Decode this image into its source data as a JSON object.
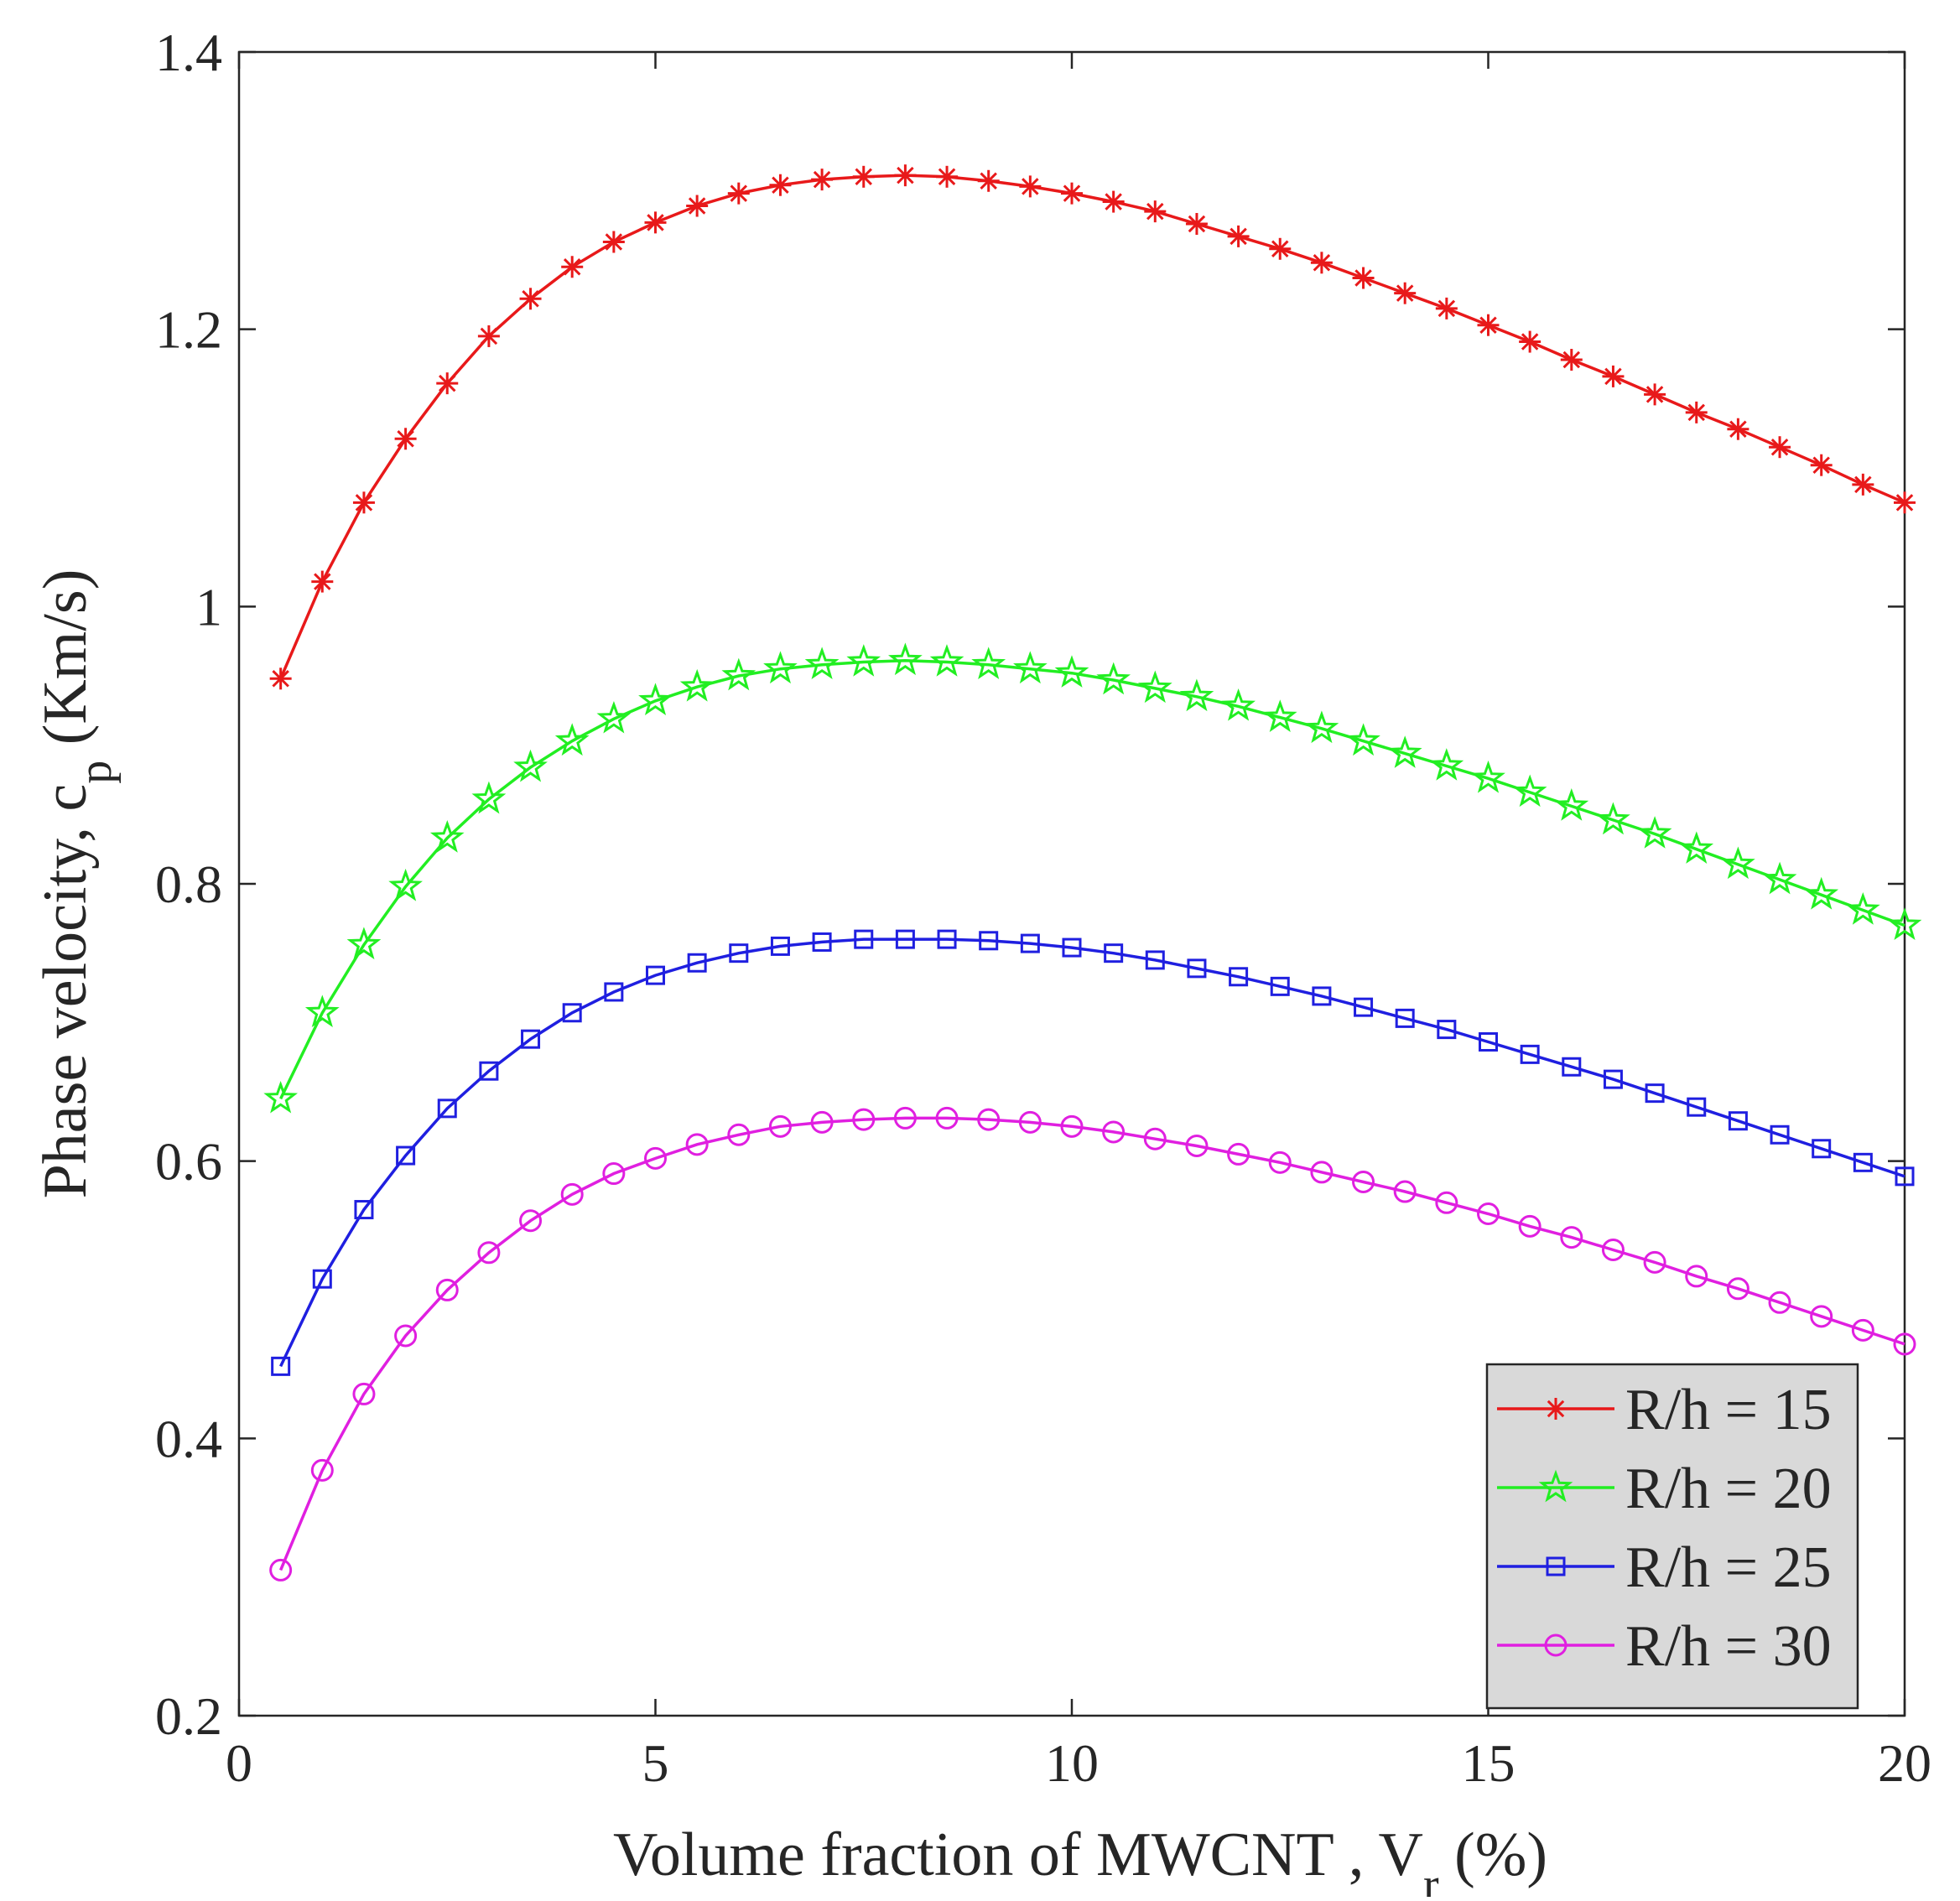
{
  "chart_data": {
    "type": "line",
    "title": "",
    "xlabel": {
      "main": "Volume fraction of MWCNT , V",
      "sub": "r",
      "suffix": " (%)"
    },
    "ylabel": {
      "main": "Phase velocity, c",
      "sub": "p",
      "suffix": " (Km/s)"
    },
    "xlim": [
      0,
      20
    ],
    "ylim": [
      0.2,
      1.4
    ],
    "xticks": [
      0,
      5,
      10,
      15,
      20
    ],
    "xtick_labels": [
      "0",
      "5",
      "10",
      "15",
      "20"
    ],
    "yticks": [
      0.2,
      0.4,
      0.6,
      0.8,
      1.0,
      1.2,
      1.4
    ],
    "ytick_labels": [
      "0.2",
      "0.4",
      "0.6",
      "0.8",
      "1",
      "1.2",
      "1.4"
    ],
    "grid": false,
    "legend_position": "bottom-right",
    "x": [
      0.5,
      1.0,
      1.5,
      2.0,
      2.5,
      3.0,
      3.5,
      4.0,
      4.5,
      5.0,
      5.5,
      6.0,
      6.5,
      7.0,
      7.5,
      8.0,
      8.5,
      9.0,
      9.5,
      10.0,
      10.5,
      11.0,
      11.5,
      12.0,
      12.5,
      13.0,
      13.5,
      14.0,
      14.5,
      15.0,
      15.5,
      16.0,
      16.5,
      17.0,
      17.5,
      18.0,
      18.5,
      19.0,
      19.5,
      20.0
    ],
    "series": [
      {
        "name": "R/h = 15",
        "color": "#e8191a",
        "marker": "asterisk",
        "values": [
          0.948,
          1.018,
          1.075,
          1.121,
          1.161,
          1.195,
          1.222,
          1.245,
          1.263,
          1.277,
          1.289,
          1.298,
          1.304,
          1.308,
          1.31,
          1.311,
          1.31,
          1.307,
          1.303,
          1.298,
          1.292,
          1.285,
          1.276,
          1.267,
          1.258,
          1.248,
          1.237,
          1.226,
          1.215,
          1.203,
          1.191,
          1.178,
          1.166,
          1.153,
          1.14,
          1.128,
          1.115,
          1.102,
          1.088,
          1.075
        ]
      },
      {
        "name": "R/h = 20",
        "color": "#22ee22",
        "marker": "star",
        "values": [
          0.645,
          0.707,
          0.756,
          0.798,
          0.833,
          0.861,
          0.884,
          0.903,
          0.919,
          0.932,
          0.942,
          0.95,
          0.955,
          0.958,
          0.96,
          0.961,
          0.96,
          0.958,
          0.955,
          0.952,
          0.947,
          0.941,
          0.935,
          0.928,
          0.92,
          0.912,
          0.903,
          0.894,
          0.885,
          0.876,
          0.866,
          0.856,
          0.846,
          0.836,
          0.825,
          0.814,
          0.803,
          0.792,
          0.781,
          0.77
        ]
      },
      {
        "name": "R/h = 25",
        "color": "#1f1fe0",
        "marker": "square",
        "values": [
          0.452,
          0.515,
          0.565,
          0.604,
          0.638,
          0.665,
          0.688,
          0.707,
          0.722,
          0.734,
          0.743,
          0.75,
          0.755,
          0.758,
          0.76,
          0.76,
          0.76,
          0.759,
          0.757,
          0.754,
          0.75,
          0.745,
          0.739,
          0.733,
          0.726,
          0.719,
          0.711,
          0.703,
          0.695,
          0.686,
          0.677,
          0.668,
          0.659,
          0.649,
          0.639,
          0.629,
          0.619,
          0.609,
          0.599,
          0.589
        ]
      },
      {
        "name": "R/h = 30",
        "color": "#e01fe0",
        "marker": "circle",
        "values": [
          0.305,
          0.377,
          0.432,
          0.474,
          0.507,
          0.534,
          0.557,
          0.576,
          0.591,
          0.602,
          0.612,
          0.619,
          0.625,
          0.628,
          0.63,
          0.631,
          0.631,
          0.63,
          0.628,
          0.625,
          0.621,
          0.616,
          0.611,
          0.605,
          0.599,
          0.592,
          0.585,
          0.578,
          0.57,
          0.562,
          0.553,
          0.545,
          0.536,
          0.527,
          0.517,
          0.508,
          0.498,
          0.488,
          0.478,
          0.468
        ]
      }
    ]
  }
}
